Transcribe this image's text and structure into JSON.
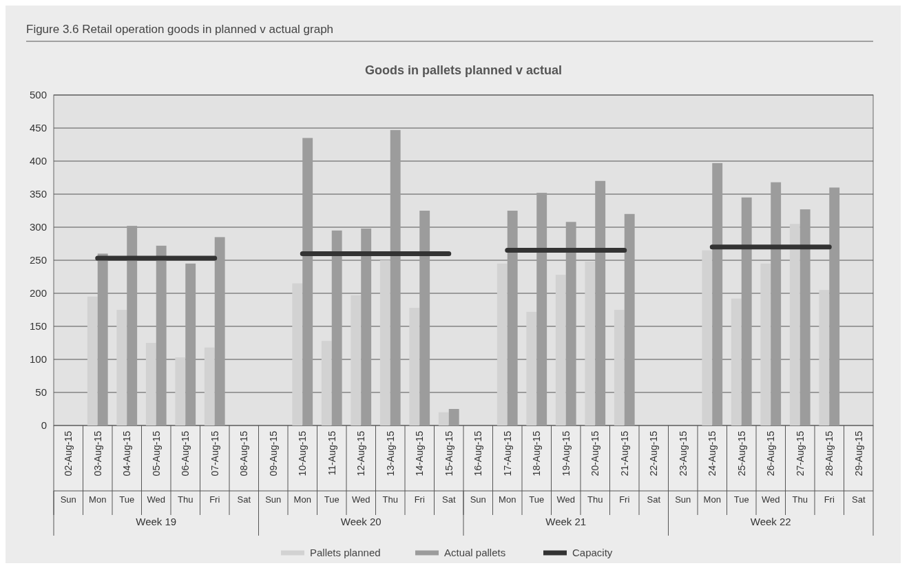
{
  "chart_data": {
    "type": "bar",
    "title": "Goods in pallets planned v actual",
    "subtitle": "Figure 3.6 Retail operation goods in planned v actual graph",
    "categories": [
      "02-Aug-15\nSun",
      "03-Aug-15\nMon",
      "04-Aug-15\nTue",
      "05-Aug-15\nWed",
      "06-Aug-15\nThu",
      "07-Aug-15\nFri",
      "08-Aug-15\nSat",
      "09-Aug-15\nSun",
      "10-Aug-15\nMon",
      "11-Aug-15\nTue",
      "12-Aug-15\nWed",
      "13-Aug-15\nThu",
      "14-Aug-15\nFri",
      "15-Aug-15\nSat",
      "16-Aug-15\nSun",
      "17-Aug-15\nMon",
      "18-Aug-15\nTue",
      "19-Aug-15\nWed",
      "20-Aug-15\nThu",
      "21-Aug-15\nFri",
      "22-Aug-15\nSat",
      "23-Aug-15\nSun",
      "24-Aug-15\nMon",
      "25-Aug-15\nTue",
      "26-Aug-15\nWed",
      "27-Aug-15\nThu",
      "28-Aug-15\nFri",
      "29-Aug-15\nSat"
    ],
    "series": [
      {
        "name": "Pallets planned",
        "color": "#d2d2d2",
        "values": [
          0,
          195,
          175,
          125,
          103,
          118,
          0,
          0,
          215,
          128,
          197,
          250,
          178,
          20,
          0,
          245,
          172,
          228,
          248,
          175,
          0,
          0,
          265,
          192,
          245,
          305,
          205,
          0
        ]
      },
      {
        "name": "Actual pallets",
        "color": "#9c9c9c",
        "values": [
          0,
          260,
          302,
          272,
          245,
          285,
          0,
          0,
          435,
          295,
          298,
          447,
          325,
          25,
          0,
          325,
          352,
          308,
          370,
          320,
          0,
          0,
          397,
          345,
          368,
          327,
          360,
          0
        ]
      },
      {
        "name": "Capacity",
        "type": "line",
        "color": "#333333",
        "values": [
          null,
          253,
          253,
          253,
          253,
          253,
          null,
          null,
          260,
          260,
          260,
          260,
          260,
          260,
          null,
          265,
          265,
          265,
          265,
          265,
          null,
          null,
          270,
          270,
          270,
          270,
          270,
          null
        ]
      }
    ],
    "annotations": [
      "Week 19",
      "Week 20",
      "Week 21",
      "Week 22"
    ],
    "ylim": [
      0,
      500
    ],
    "yticks": [
      0,
      50,
      100,
      150,
      200,
      250,
      300,
      350,
      400,
      450,
      500
    ],
    "grid": "y",
    "legend": "bottom"
  }
}
